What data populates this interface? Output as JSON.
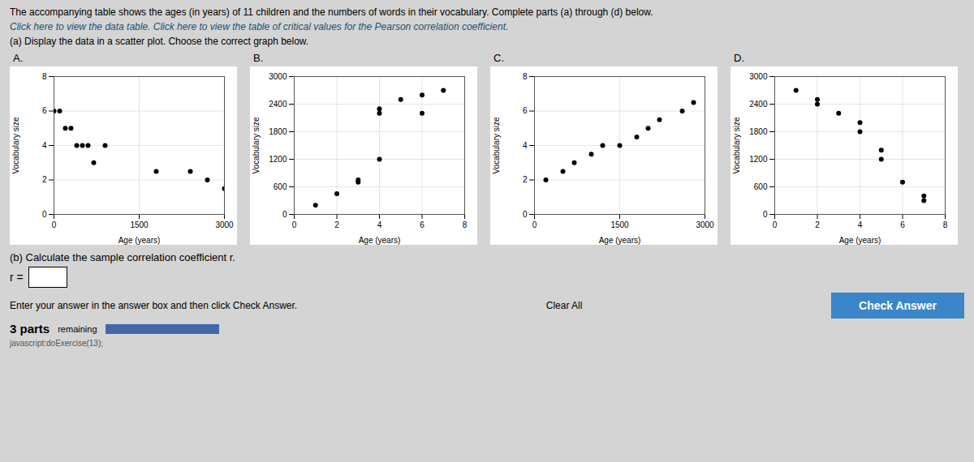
{
  "title": "The accompanying table shows the ages (in years) of 11 children and the numbers of words in their vocabulary. Complete parts (a) through (d) below.",
  "subtitle": "Click here to view the data table.  Click here to view the table of critical values for the Pearson correlation coefficient.",
  "annotations": [
    "(a) Display the data in a scatter plot. Choose the correct graph below.",
    "(b) Calculate the sample correlation coefficient r.",
    "r =",
    "Enter your answer in the answer box and then click Check Answer.",
    "Clear All",
    "Check Answer",
    "3  parts",
    "remaining",
    "javascript:doExercise(13);"
  ],
  "chart_data": [
    {
      "type": "scatter",
      "title": "A.",
      "xlabel": "Age (years)",
      "ylabel": "Vocabulary size",
      "xlim": [
        0,
        3000
      ],
      "ylim": [
        0,
        8
      ],
      "xticks": [
        0,
        1500,
        3000
      ],
      "yticks": [
        0,
        2,
        4,
        6,
        8
      ],
      "x": [
        0,
        100,
        200,
        300,
        400,
        500,
        600,
        700,
        900,
        1800,
        2400,
        2700,
        3000
      ],
      "values": [
        6,
        6,
        5,
        5,
        4,
        4,
        4,
        3,
        4,
        2.5,
        2.5,
        2,
        1.5
      ],
      "color": "#000000",
      "grid": true
    },
    {
      "type": "scatter",
      "title": "B.",
      "xlabel": "Age (years)",
      "ylabel": "Vocabulary size",
      "xlim": [
        0,
        8
      ],
      "ylim": [
        0,
        3000
      ],
      "xticks": [
        0,
        2,
        4,
        6,
        8
      ],
      "yticks": [
        0,
        600,
        1200,
        1800,
        2400,
        3000
      ],
      "x": [
        1,
        2,
        3,
        3,
        4,
        4,
        4,
        5,
        6,
        6,
        7
      ],
      "values": [
        200,
        450,
        700,
        750,
        1200,
        2200,
        2300,
        2500,
        2200,
        2600,
        2700
      ],
      "color": "#000000",
      "grid": true
    },
    {
      "type": "scatter",
      "title": "C.",
      "xlabel": "Age (years)",
      "ylabel": "Vocabulary size",
      "xlim": [
        0,
        3000
      ],
      "ylim": [
        0,
        8
      ],
      "xticks": [
        0,
        1500,
        3000
      ],
      "yticks": [
        0,
        2,
        4,
        6,
        8
      ],
      "x": [
        200,
        500,
        700,
        1000,
        1200,
        1500,
        1800,
        2000,
        2200,
        2600,
        2800
      ],
      "values": [
        2,
        2.5,
        3,
        3.5,
        4,
        4,
        4.5,
        5,
        5.5,
        6,
        6.5
      ],
      "color": "#000000",
      "grid": true
    },
    {
      "type": "scatter",
      "title": "D.",
      "xlabel": "Age (years)",
      "ylabel": "Vocabulary size",
      "xlim": [
        0,
        8
      ],
      "ylim": [
        0,
        3000
      ],
      "xticks": [
        0,
        2,
        4,
        6,
        8
      ],
      "yticks": [
        0,
        600,
        1200,
        1800,
        2400,
        3000
      ],
      "x": [
        1,
        2,
        2,
        3,
        4,
        4,
        5,
        5,
        6,
        7,
        7
      ],
      "values": [
        2700,
        2400,
        2500,
        2200,
        1800,
        2000,
        1200,
        1400,
        700,
        400,
        300
      ],
      "color": "#000000",
      "grid": true
    }
  ]
}
